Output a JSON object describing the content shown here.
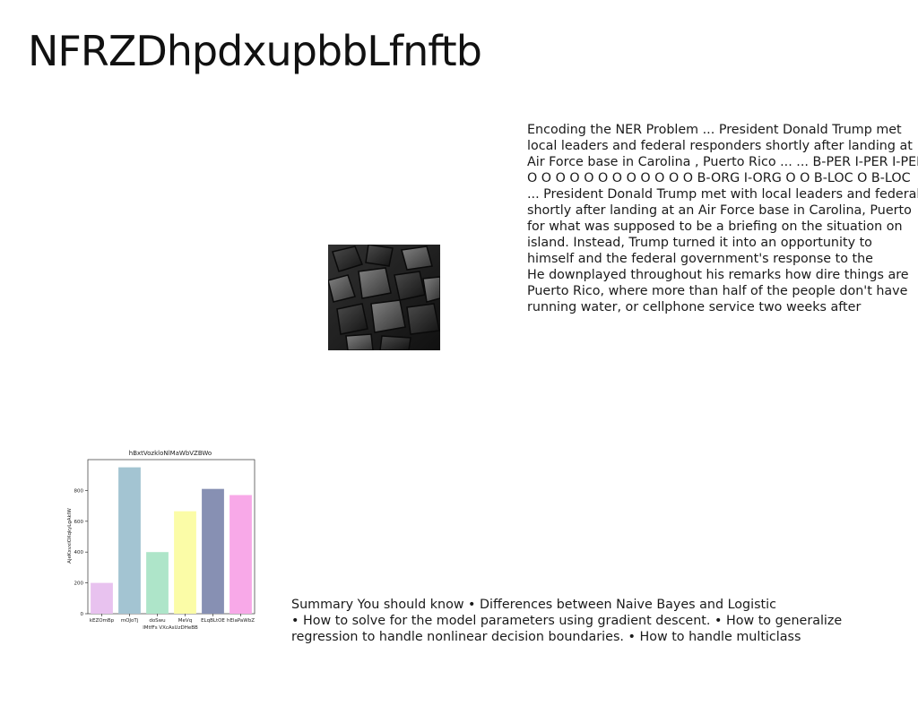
{
  "page": {
    "title": "NFRZDhpdxupbbLfnftb"
  },
  "ner_text": {
    "lines": [
      "Encoding the NER Problem ... President Donald Trump met",
      "local leaders and federal responders shortly after landing at",
      "Air Force base in Carolina , Puerto Rico ... ... B-PER I-PER I-PER",
      "O O O O O O O O O O O O B-ORG I-ORG O O B-LOC O B-LOC",
      "... President Donald Trump met with local leaders and federal",
      "shortly after landing at an Air Force base in Carolina, Puerto",
      "for what was supposed to be a briefing on the situation on",
      "island. Instead, Trump turned it into an opportunity to",
      "himself and the federal government's response to the",
      "He downplayed throughout his remarks how dire things are",
      "Puerto Rico, where more than half of the people don't have",
      "running water, or cellphone service two weeks after"
    ]
  },
  "summary_text": {
    "lines": [
      "Summary You should know • Differences between Naive Bayes and Logistic",
      "• How to solve for the model parameters using gradient descent. • How to generalize",
      "regression to handle nonlinear decision boundaries. • How to handle multiclass"
    ]
  },
  "photo": {
    "subject": "dark abstract 3D cubes",
    "colors": {
      "dark": "#1b1b1b",
      "mid": "#4a4a4a",
      "light": "#8c8c8c"
    }
  },
  "chart_data": {
    "type": "bar",
    "title": "hBxtVozkloNlMaWbVZBWo",
    "xlabel": "lMtfFs VXcAsUzDHeBB",
    "ylabel": "AjeKxvxiOXqkyLgAkIW",
    "categories": [
      "kEZOmBp",
      "mOJoTj",
      "doSwu",
      "MeVq",
      "ELqBLtOE",
      "hElaPaWbZ"
    ],
    "values": [
      200,
      950,
      400,
      665,
      810,
      770
    ],
    "colors": [
      "#e8c2ef",
      "#a3c4d2",
      "#aee5c9",
      "#fbfca7",
      "#8790b3",
      "#f8a9e8"
    ],
    "ylim": [
      0,
      1000
    ],
    "yticks": [
      0,
      200,
      400,
      600,
      800
    ],
    "grid": false
  }
}
